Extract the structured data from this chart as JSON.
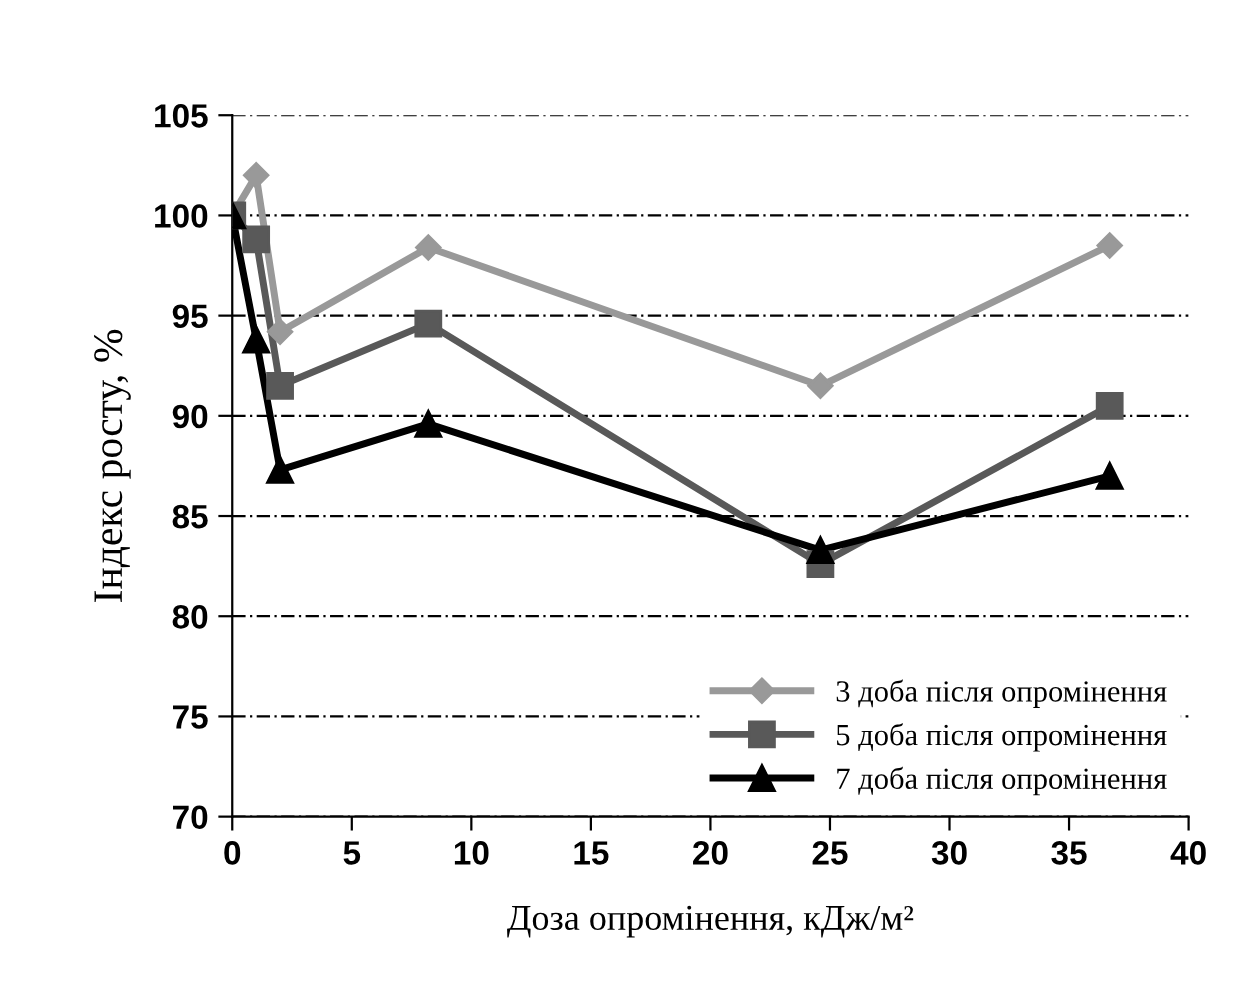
{
  "chart_data": {
    "type": "line",
    "xlabel": "Доза опромінення, кДж/м²",
    "ylabel": "Індекс росту, %",
    "xlim": [
      0,
      40
    ],
    "xticks": [
      0,
      5,
      10,
      15,
      20,
      25,
      30,
      35,
      40
    ],
    "ylim": [
      70,
      105
    ],
    "yticks": [
      70,
      75,
      80,
      85,
      90,
      95,
      100,
      105
    ],
    "grid": "y",
    "legend": "bottom right",
    "line_style": "solid",
    "series": [
      {
        "name": "3 доба після опромінення",
        "color": "#999999",
        "marker": "diamond",
        "x": [
          0,
          1,
          2,
          8.2,
          24.6,
          36.7
        ],
        "values": [
          100,
          102,
          94.2,
          98.4,
          91.5,
          98.5
        ]
      },
      {
        "name": "5 доба після опромінення",
        "color": "#595959",
        "marker": "square",
        "x": [
          0,
          1,
          2,
          8.2,
          24.6,
          36.7
        ],
        "values": [
          100,
          98.8,
          91.5,
          94.6,
          82.6,
          90.5
        ]
      },
      {
        "name": "7 доба після опромінення",
        "color": "#000000",
        "marker": "triangle",
        "x": [
          0,
          1,
          2,
          8.2,
          24.6,
          36.7
        ],
        "values": [
          100,
          93.8,
          87.3,
          89.6,
          83.3,
          87.0
        ]
      }
    ]
  }
}
